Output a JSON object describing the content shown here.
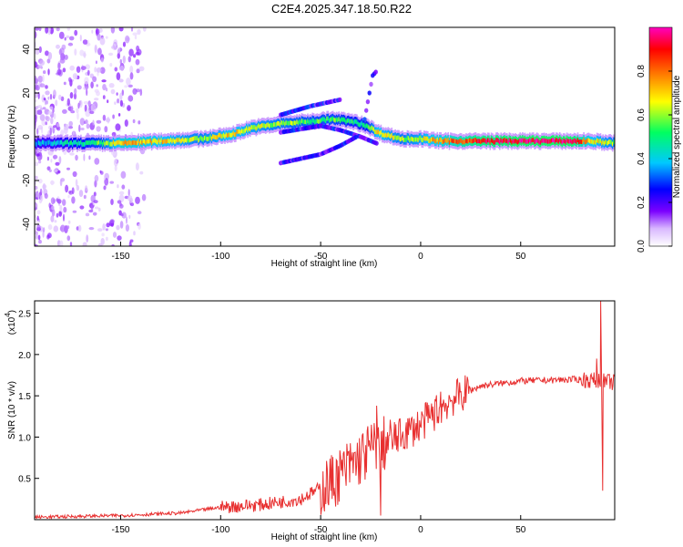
{
  "title": "C2E4.2025.347.18.50.R22",
  "chart_data": [
    {
      "type": "heatmap",
      "name": "spectrogram",
      "xlabel": "Height of straight line (km)",
      "ylabel": "Frequency (Hz)",
      "xlim": [
        -193,
        97
      ],
      "ylim": [
        -50,
        50
      ],
      "xticks": [
        "-150",
        "-100",
        "-50",
        "0",
        "50"
      ],
      "xtick_values": [
        -150,
        -100,
        -50,
        0,
        50
      ],
      "yticks": [
        "40",
        "20",
        "0",
        "-20",
        "-40"
      ],
      "ytick_values": [
        40,
        20,
        0,
        -20,
        -40
      ],
      "colorbar": {
        "label": "Normalized spectral amplitude",
        "range": [
          0,
          1
        ],
        "ticks": [
          "0.0",
          "0.2",
          "0.4",
          "0.6",
          "0.8"
        ],
        "tick_values": [
          0.0,
          0.2,
          0.4,
          0.6,
          0.8
        ],
        "colors": [
          "#ffffff",
          "#d9b8ff",
          "#7b00ff",
          "#0000ff",
          "#00c8ff",
          "#00ff60",
          "#ffff00",
          "#ff8000",
          "#ff0000",
          "#ff00c0"
        ]
      },
      "main_band": [
        {
          "x": -193,
          "f": -3,
          "a": 0.35
        },
        {
          "x": -160,
          "f": -3,
          "a": 0.55
        },
        {
          "x": -150,
          "f": -3,
          "a": 0.75
        },
        {
          "x": -130,
          "f": -2,
          "a": 0.7
        },
        {
          "x": -110,
          "f": -1,
          "a": 0.6
        },
        {
          "x": -95,
          "f": 1,
          "a": 0.7
        },
        {
          "x": -85,
          "f": 4,
          "a": 0.65
        },
        {
          "x": -70,
          "f": 6,
          "a": 0.6
        },
        {
          "x": -55,
          "f": 7,
          "a": 0.55
        },
        {
          "x": -45,
          "f": 8,
          "a": 0.55
        },
        {
          "x": -35,
          "f": 7,
          "a": 0.5
        },
        {
          "x": -27,
          "f": 5,
          "a": 0.5
        },
        {
          "x": -22,
          "f": 2,
          "a": 0.7
        },
        {
          "x": -10,
          "f": -1,
          "a": 0.6
        },
        {
          "x": 0,
          "f": -1,
          "a": 0.65
        },
        {
          "x": 10,
          "f": -2,
          "a": 0.75
        },
        {
          "x": 30,
          "f": -2,
          "a": 0.9
        },
        {
          "x": 50,
          "f": -2,
          "a": 0.95
        },
        {
          "x": 75,
          "f": -2,
          "a": 0.95
        },
        {
          "x": 85,
          "f": -2,
          "a": 0.7
        },
        {
          "x": 97,
          "f": -3,
          "a": 0.6
        }
      ],
      "side_branches": [
        [
          {
            "x": -70,
            "f": 2
          },
          {
            "x": -50,
            "f": 5
          },
          {
            "x": -40,
            "f": 3
          },
          {
            "x": -30,
            "f": 0
          },
          {
            "x": -22,
            "f": -3
          }
        ],
        [
          {
            "x": -70,
            "f": 10
          },
          {
            "x": -55,
            "f": 14
          },
          {
            "x": -45,
            "f": 16
          },
          {
            "x": -40,
            "f": 17
          }
        ],
        [
          {
            "x": -28,
            "f": 8
          },
          {
            "x": -26,
            "f": 18
          },
          {
            "x": -24,
            "f": 28
          },
          {
            "x": -22,
            "f": 30
          }
        ],
        [
          {
            "x": -70,
            "f": -12
          },
          {
            "x": -60,
            "f": -10
          },
          {
            "x": -50,
            "f": -8
          },
          {
            "x": -40,
            "f": -4
          },
          {
            "x": -32,
            "f": 0
          }
        ]
      ]
    },
    {
      "type": "line",
      "name": "snr",
      "xlabel": "Height of straight line (km)",
      "ylabel": "SNR (10 * v/v)",
      "multiplier": "(x10",
      "multiplier_exp": "4",
      "color": "#e83030",
      "xlim": [
        -193,
        97
      ],
      "ylim": [
        0,
        2.65
      ],
      "xticks": [
        "-150",
        "-100",
        "-50",
        "0",
        "50"
      ],
      "xtick_values": [
        -150,
        -100,
        -50,
        0,
        50
      ],
      "yticks": [
        "0.5",
        "1.0",
        "1.5",
        "2.0",
        "2.5"
      ],
      "ytick_values": [
        0.5,
        1.0,
        1.5,
        2.0,
        2.5
      ],
      "trend": [
        {
          "x": -193,
          "y": 0.03
        },
        {
          "x": -150,
          "y": 0.05
        },
        {
          "x": -120,
          "y": 0.08
        },
        {
          "x": -100,
          "y": 0.15
        },
        {
          "x": -80,
          "y": 0.18
        },
        {
          "x": -60,
          "y": 0.25
        },
        {
          "x": -45,
          "y": 0.45
        },
        {
          "x": -35,
          "y": 0.65
        },
        {
          "x": -25,
          "y": 0.85
        },
        {
          "x": -15,
          "y": 0.95
        },
        {
          "x": 0,
          "y": 1.15
        },
        {
          "x": 15,
          "y": 1.45
        },
        {
          "x": 30,
          "y": 1.62
        },
        {
          "x": 50,
          "y": 1.68
        },
        {
          "x": 80,
          "y": 1.7
        },
        {
          "x": 97,
          "y": 1.66
        }
      ],
      "spikes": [
        {
          "x": -22,
          "y": 1.38
        },
        {
          "x": -20,
          "y": 0.05
        },
        {
          "x": 10,
          "y": 1.55
        },
        {
          "x": 90,
          "y": 2.65
        },
        {
          "x": 91,
          "y": 0.35
        },
        {
          "x": 88,
          "y": 1.95
        }
      ]
    }
  ]
}
